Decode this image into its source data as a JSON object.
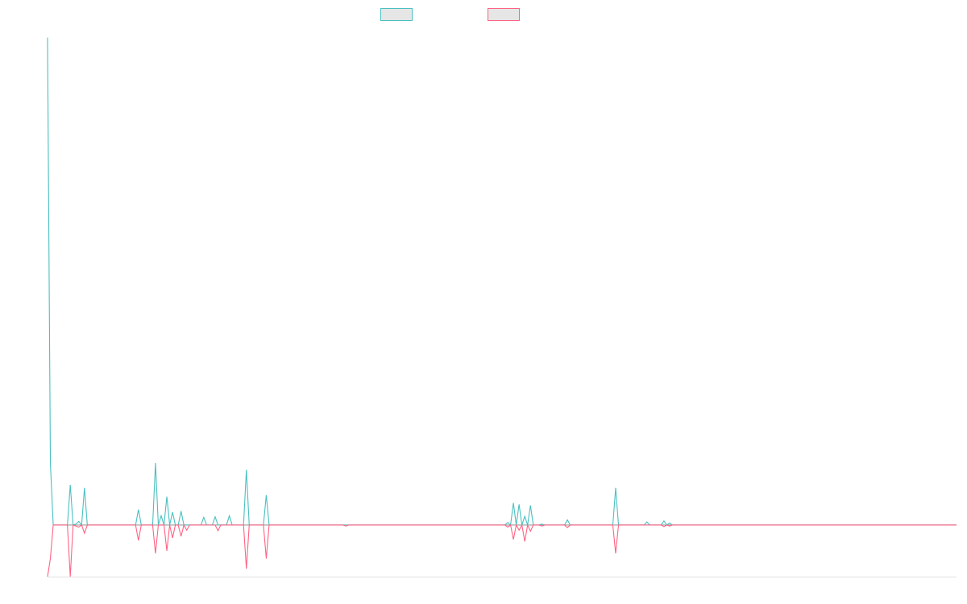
{
  "colors": {
    "series_1": "#4bc0c0",
    "series_2": "#ff6384",
    "legend_fill": "#e6e6e6",
    "axis": "#e0e0e0",
    "zero_line": "#9e9e9e"
  },
  "chart_data": {
    "type": "line",
    "title": "",
    "xlabel": "",
    "ylabel": "",
    "legend_position": "top-center",
    "grid": false,
    "x_count": 321,
    "ylim": [
      -1.0,
      9.6
    ],
    "series": [
      {
        "name": "",
        "color": "#4bc0c0",
        "points": [
          [
            0,
            9.45
          ],
          [
            1,
            1.2
          ],
          [
            2,
            0
          ],
          [
            7,
            0
          ],
          [
            8,
            0.78
          ],
          [
            9,
            0
          ],
          [
            10,
            0.02
          ],
          [
            11,
            0.07
          ],
          [
            12,
            0
          ],
          [
            13,
            0.72
          ],
          [
            14,
            0
          ],
          [
            31,
            0
          ],
          [
            32,
            0.3
          ],
          [
            33,
            0
          ],
          [
            37,
            0
          ],
          [
            38,
            1.2
          ],
          [
            39,
            0
          ],
          [
            40,
            0.18
          ],
          [
            41,
            0
          ],
          [
            42,
            0.55
          ],
          [
            43,
            0
          ],
          [
            44,
            0.25
          ],
          [
            45,
            0
          ],
          [
            46,
            0
          ],
          [
            47,
            0.27
          ],
          [
            48,
            0
          ],
          [
            54,
            0
          ],
          [
            55,
            0.15
          ],
          [
            56,
            0
          ],
          [
            58,
            0
          ],
          [
            59,
            0.16
          ],
          [
            60,
            0
          ],
          [
            63,
            0
          ],
          [
            64,
            0.18
          ],
          [
            65,
            0
          ],
          [
            69,
            0
          ],
          [
            70,
            1.07
          ],
          [
            71,
            0
          ],
          [
            76,
            0
          ],
          [
            77,
            0.58
          ],
          [
            78,
            0
          ],
          [
            161,
            0
          ],
          [
            162,
            0.05
          ],
          [
            163,
            0
          ],
          [
            164,
            0.43
          ],
          [
            165,
            0
          ],
          [
            166,
            0.4
          ],
          [
            167,
            0
          ],
          [
            168,
            0.17
          ],
          [
            169,
            0
          ],
          [
            170,
            0.38
          ],
          [
            171,
            0
          ],
          [
            173,
            0
          ],
          [
            174,
            0.02
          ],
          [
            175,
            0
          ],
          [
            182,
            0
          ],
          [
            183,
            0.1
          ],
          [
            184,
            0
          ],
          [
            199,
            0
          ],
          [
            200,
            0.72
          ],
          [
            201,
            0
          ],
          [
            210,
            0
          ],
          [
            211,
            0.06
          ],
          [
            212,
            0
          ],
          [
            216,
            0
          ],
          [
            217,
            0.08
          ],
          [
            218,
            0
          ],
          [
            219,
            0.04
          ],
          [
            220,
            0
          ],
          [
            320,
            0
          ]
        ]
      },
      {
        "name": "",
        "color": "#ff6384",
        "points": [
          [
            0,
            -1.0
          ],
          [
            1,
            -0.65
          ],
          [
            2,
            0
          ],
          [
            7,
            0
          ],
          [
            8,
            -1.0
          ],
          [
            9,
            0
          ],
          [
            10,
            -0.02
          ],
          [
            11,
            -0.04
          ],
          [
            12,
            0
          ],
          [
            13,
            -0.16
          ],
          [
            14,
            0
          ],
          [
            31,
            0
          ],
          [
            32,
            -0.3
          ],
          [
            33,
            0
          ],
          [
            37,
            0
          ],
          [
            38,
            -0.55
          ],
          [
            39,
            0
          ],
          [
            41,
            0
          ],
          [
            42,
            -0.5
          ],
          [
            43,
            0
          ],
          [
            44,
            -0.25
          ],
          [
            45,
            0
          ],
          [
            46,
            0
          ],
          [
            47,
            -0.22
          ],
          [
            48,
            0
          ],
          [
            49,
            -0.1
          ],
          [
            50,
            0
          ],
          [
            59,
            0
          ],
          [
            60,
            -0.11
          ],
          [
            61,
            0
          ],
          [
            69,
            0
          ],
          [
            70,
            -0.85
          ],
          [
            71,
            0
          ],
          [
            76,
            0
          ],
          [
            77,
            -0.65
          ],
          [
            78,
            0
          ],
          [
            104,
            0
          ],
          [
            105,
            -0.02
          ],
          [
            106,
            0
          ],
          [
            161,
            0
          ],
          [
            162,
            -0.04
          ],
          [
            163,
            0
          ],
          [
            164,
            -0.28
          ],
          [
            165,
            0
          ],
          [
            166,
            -0.1
          ],
          [
            167,
            0
          ],
          [
            168,
            -0.32
          ],
          [
            169,
            0
          ],
          [
            170,
            -0.12
          ],
          [
            171,
            0
          ],
          [
            173,
            0
          ],
          [
            174,
            -0.02
          ],
          [
            175,
            0
          ],
          [
            182,
            0
          ],
          [
            183,
            -0.05
          ],
          [
            184,
            0
          ],
          [
            199,
            0
          ],
          [
            200,
            -0.55
          ],
          [
            201,
            0
          ],
          [
            216,
            0
          ],
          [
            217,
            -0.03
          ],
          [
            218,
            0
          ],
          [
            219,
            -0.02
          ],
          [
            220,
            0
          ],
          [
            320,
            0
          ]
        ]
      }
    ]
  }
}
